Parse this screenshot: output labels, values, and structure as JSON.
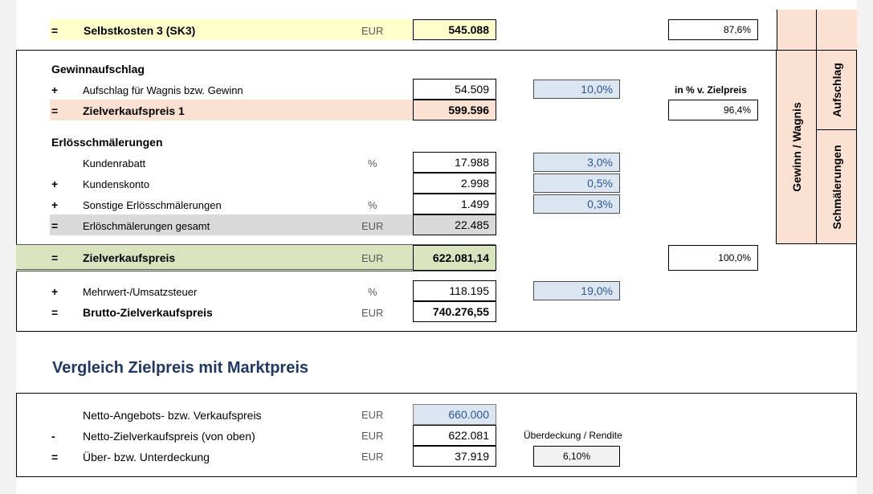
{
  "top_row": {
    "op": "=",
    "label": "Selbstkosten 3 (SK3)",
    "unit": "EUR",
    "value": "545.088",
    "ratio": "87,6%"
  },
  "gewinn": {
    "heading": "Gewinnaufschlag",
    "aufschlag": {
      "op": "+",
      "label": "Aufschlag für Wagnis bzw. Gewinn",
      "value": "54.509",
      "pct": "10,0%",
      "note": "in % v. Zielpreis"
    },
    "zielverkaufspreis1": {
      "op": "=",
      "label": "Zielverkaufspreis 1",
      "value": "599.596",
      "ratio": "96,4%"
    }
  },
  "erloes": {
    "heading": "Erlösschmälerungen",
    "rows": [
      {
        "op": "",
        "label": "Kundenrabatt",
        "unit": "%",
        "value": "17.988",
        "pct": "3,0%"
      },
      {
        "op": "+",
        "label": "Kundenskonto",
        "unit": "",
        "value": "2.998",
        "pct": "0,5%"
      },
      {
        "op": "+",
        "label": "Sonstige Erlösschmälerungen",
        "unit": "%",
        "value": "1.499",
        "pct": "0,3%"
      }
    ],
    "total": {
      "op": "=",
      "label": "Erlöschmälerungen gesamt",
      "unit": "EUR",
      "value": "22.485"
    }
  },
  "zielverkaufspreis": {
    "op": "=",
    "label": "Zielverkaufspreis",
    "unit": "EUR",
    "value": "622.081,14",
    "ratio": "100,0%"
  },
  "mwst": {
    "op": "+",
    "label": "Mehrwert-/Umsatzsteuer",
    "unit": "%",
    "value": "118.195",
    "pct": "19,0%"
  },
  "brutto": {
    "op": "=",
    "label": "Brutto-Zielverkaufspreis",
    "unit": "EUR",
    "value": "740.276,55"
  },
  "side_labels": {
    "gewinn_wagnis": "Gewinn / Wagnis",
    "aufschlag": "Aufschlag",
    "schmaelerungen": "Schmälerungen"
  },
  "vergleich": {
    "title": "Vergleich Zielpreis mit Marktpreis",
    "rows": [
      {
        "op": "",
        "label": "Netto-Angebots- bzw. Verkaufspreis",
        "unit": "EUR",
        "value": "660.000"
      },
      {
        "op": "-",
        "label": "Netto-Zielverkaufspreis (von oben)",
        "unit": "EUR",
        "value": "622.081"
      },
      {
        "op": "=",
        "label": "Über- bzw. Unterdeckung",
        "unit": "EUR",
        "value": "37.919"
      }
    ],
    "rendite_label": "Überdeckung / Rendite",
    "rendite_value": "6,10%"
  },
  "colors": {
    "yellow_highlight": "#ffffcc",
    "peach_highlight": "#fbe1d1",
    "grey_highlight": "#d9d9d9",
    "green_highlight": "#d7e4bd",
    "input_blue": "#dce6f1",
    "title_blue": "#1f3864"
  }
}
